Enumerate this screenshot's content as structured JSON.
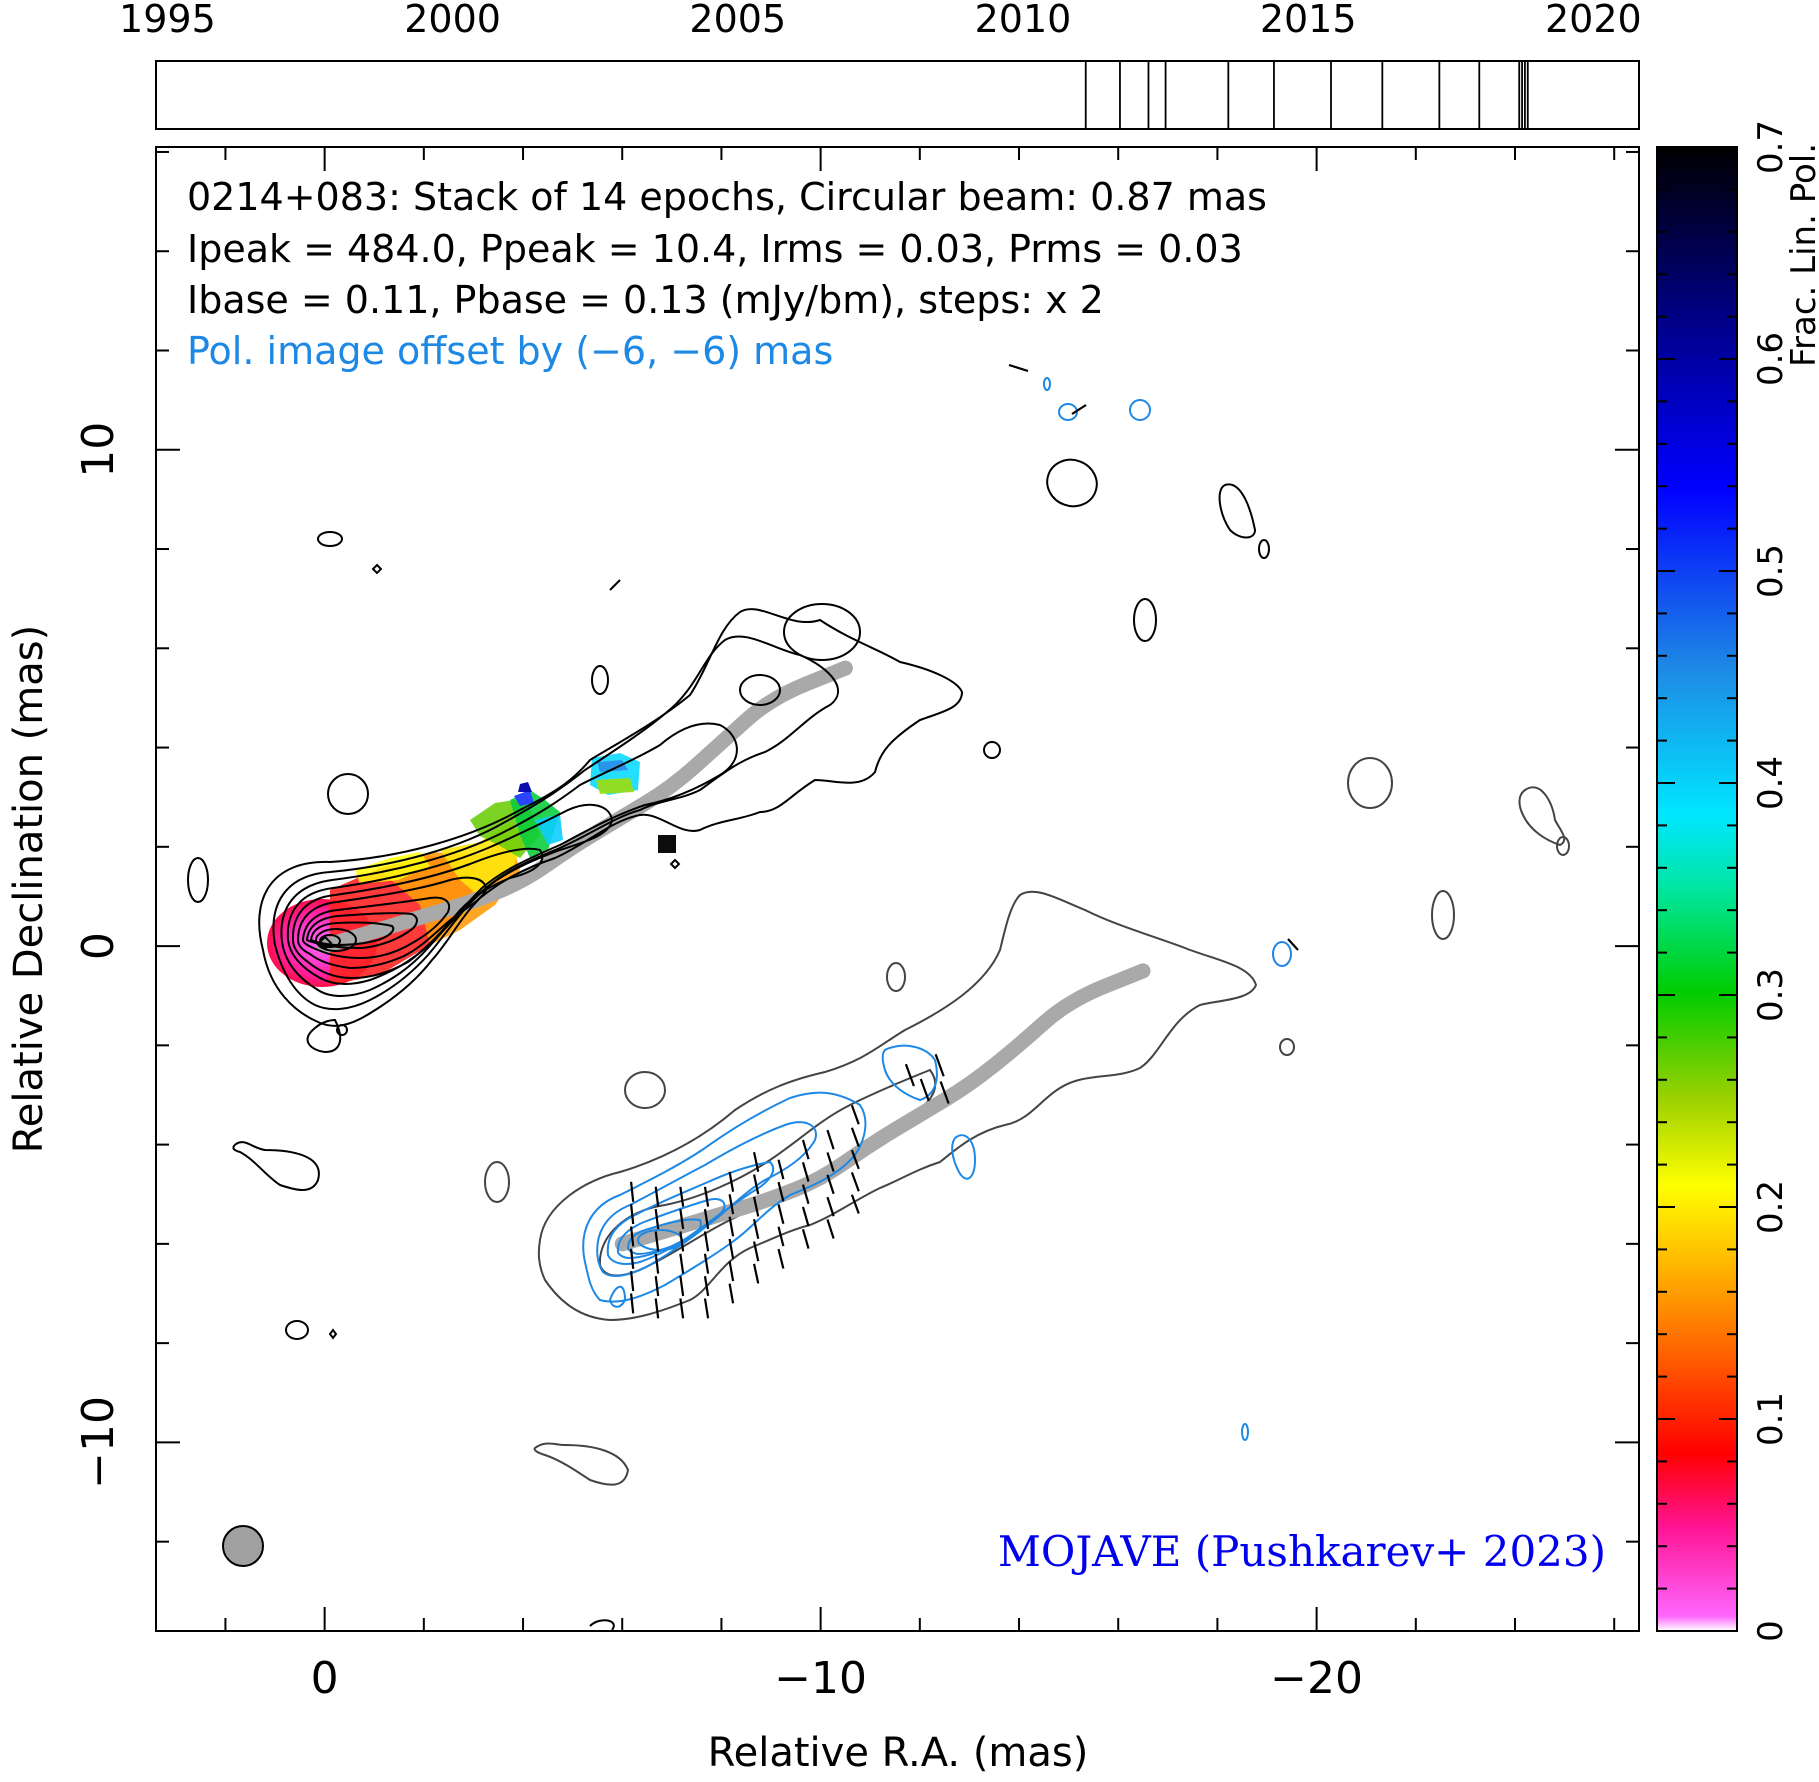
{
  "chart_data": {
    "type": "contour",
    "source": "0214+083",
    "timeline": {
      "tick_labels": [
        "1995",
        "2000",
        "2005",
        "2010",
        "2015",
        "2020"
      ],
      "tick_years": [
        1995,
        2000,
        2005,
        2010,
        2015,
        2020
      ],
      "range": [
        1994.8,
        2020.8
      ],
      "epochs": [
        2011.1,
        2011.7,
        2012.2,
        2012.5,
        2013.6,
        2014.4,
        2015.4,
        2016.3,
        2017.3,
        2018.0,
        2018.7,
        2018.75,
        2018.8,
        2018.85
      ]
    },
    "info_lines": [
      "0214+083: Stack of 14 epochs, Circular beam: 0.87 mas",
      "Ipeak = 484.0, Ppeak = 10.4, Irms = 0.03, Prms = 0.03",
      "Ibase = 0.11, Pbase = 0.13 (mJy/bm), steps: x 2"
    ],
    "offset_note": "Pol. image offset by (−6, −6) mas",
    "credit": "MOJAVE (Pushkarev+ 2023)",
    "xlabel": "Relative R.A. (mas)",
    "ylabel": "Relative Declination (mas)",
    "xlim": [
      3.4,
      -26.5
    ],
    "ylim": [
      -13.8,
      16.1
    ],
    "x_tick_labels": [
      "0",
      "−10",
      "−20"
    ],
    "x_tick_values": [
      0,
      -10,
      -20
    ],
    "y_tick_labels": [
      "−10",
      "0",
      "10"
    ],
    "y_tick_values": [
      -10,
      0,
      10
    ],
    "beam_diameter_mas": 0.87,
    "colorbar": {
      "label": "Frac. Lin. Pol.",
      "range": [
        0,
        0.7
      ],
      "tick_labels": [
        "0",
        "0.1",
        "0.2",
        "0.3",
        "0.4",
        "0.5",
        "0.6",
        "0.7"
      ],
      "tick_values": [
        0,
        0.1,
        0.2,
        0.3,
        0.4,
        0.5,
        0.6,
        0.7
      ]
    },
    "ridge_line_total_intensity": [
      [
        0.0,
        0.0
      ],
      [
        -1.0,
        0.3
      ],
      [
        -2.0,
        0.6
      ],
      [
        -3.0,
        0.9
      ],
      [
        -4.0,
        1.3
      ],
      [
        -5.0,
        2.0
      ],
      [
        -6.0,
        2.6
      ],
      [
        -7.0,
        3.2
      ],
      [
        -8.0,
        4.1
      ],
      [
        -9.0,
        5.0
      ],
      [
        -10.5,
        5.6
      ]
    ],
    "ridge_line_polarization": [
      [
        -6.0,
        -6.0
      ],
      [
        -7.0,
        -5.7
      ],
      [
        -8.0,
        -5.4
      ],
      [
        -9.0,
        -5.1
      ],
      [
        -10.0,
        -4.7
      ],
      [
        -11.0,
        -4.0
      ],
      [
        -12.0,
        -3.4
      ],
      [
        -13.0,
        -2.8
      ],
      [
        -14.0,
        -2.0
      ],
      [
        -15.0,
        -1.1
      ],
      [
        -16.5,
        -0.5
      ]
    ],
    "fractional_polarization_along_jet": [
      {
        "ra": 0.0,
        "dec": 0.0,
        "value": 0.01
      },
      {
        "ra": -0.5,
        "dec": 0.3,
        "value": 0.02
      },
      {
        "ra": -1.0,
        "dec": 0.6,
        "value": 0.05
      },
      {
        "ra": -1.5,
        "dec": 0.8,
        "value": 0.08
      },
      {
        "ra": -2.0,
        "dec": 0.9,
        "value": 0.12
      },
      {
        "ra": -2.6,
        "dec": 1.2,
        "value": 0.15
      },
      {
        "ra": -3.1,
        "dec": 1.5,
        "value": 0.2
      },
      {
        "ra": -3.6,
        "dec": 2.1,
        "value": 0.25
      },
      {
        "ra": -4.0,
        "dec": 2.8,
        "value": 0.5
      },
      {
        "ra": -5.9,
        "dec": 3.5,
        "value": 0.4
      },
      {
        "ra": -6.9,
        "dec": 1.9,
        "value": 0.7
      }
    ]
  },
  "colors": {
    "total_intensity_contours": "#000000",
    "offset_total_intensity_contours": "#444444",
    "polarized_contours": "#1e88e5",
    "evpa_ticks": "#000000",
    "ridge_line": "#a9a9a9",
    "credit": "#0000ee",
    "offset_note": "#1e88e5",
    "beam": "#a0a0a0"
  }
}
